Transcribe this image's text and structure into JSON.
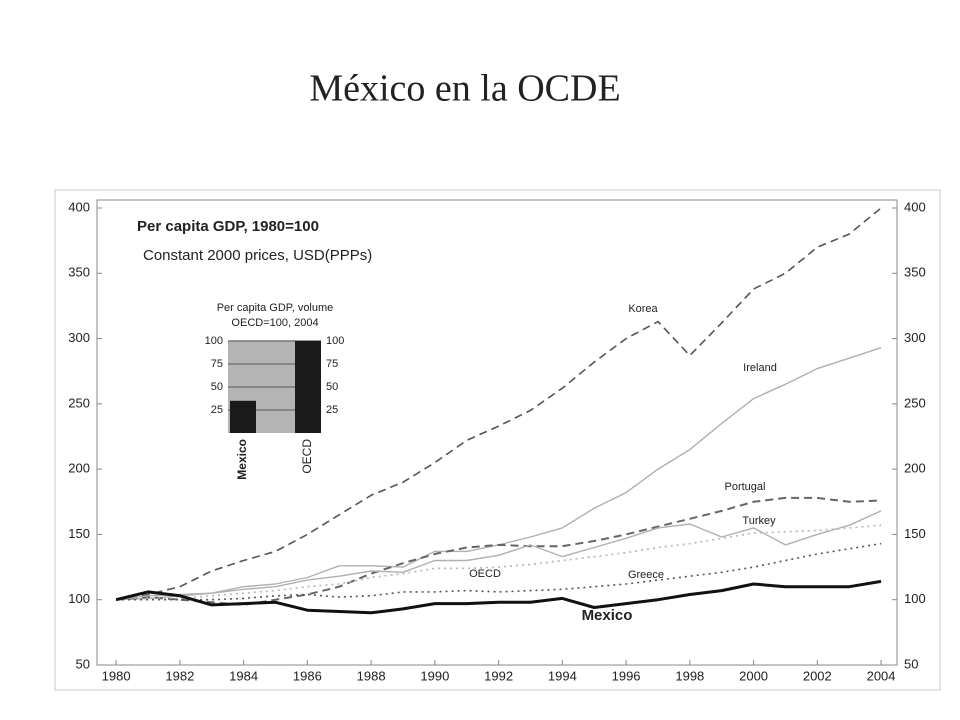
{
  "title": "México en la OCDE",
  "chart_data": [
    {
      "type": "line",
      "title": "Per capita GDP, 1980=100",
      "subtitle": "Constant 2000 prices, USD(PPPs)",
      "x": [
        1980,
        1981,
        1982,
        1983,
        1984,
        1985,
        1986,
        1987,
        1988,
        1989,
        1990,
        1991,
        1992,
        1993,
        1994,
        1995,
        1996,
        1997,
        1998,
        1999,
        2000,
        2001,
        2002,
        2003,
        2004
      ],
      "xlim": [
        1979.4,
        2004.5
      ],
      "xticks": [
        1980,
        1982,
        1984,
        1986,
        1988,
        1990,
        1992,
        1994,
        1996,
        1998,
        2000,
        2002,
        2004
      ],
      "ylim": [
        50,
        400
      ],
      "yticks": [
        50,
        100,
        150,
        200,
        250,
        300,
        350,
        400
      ],
      "y2lim": [
        50,
        400
      ],
      "y2ticks": [
        50,
        100,
        150,
        200,
        250,
        300,
        350,
        400
      ],
      "series": [
        {
          "name": "Korea",
          "color": "#555555",
          "style": "dashed",
          "width": 1.6,
          "values": [
            100,
            104,
            110,
            122,
            130,
            137,
            150,
            165,
            180,
            190,
            205,
            222,
            233,
            245,
            262,
            282,
            300,
            313,
            287,
            312,
            338,
            350,
            370,
            380,
            400
          ]
        },
        {
          "name": "Ireland",
          "color": "#b0b0b0",
          "style": "solid",
          "width": 1.4,
          "values": [
            100,
            101,
            103,
            105,
            110,
            112,
            117,
            126,
            126,
            125,
            137,
            137,
            142,
            148,
            155,
            170,
            182,
            200,
            215,
            235,
            254,
            265,
            277,
            285,
            293
          ]
        },
        {
          "name": "Portugal",
          "color": "#666666",
          "style": "dashed",
          "width": 2,
          "values": [
            100,
            102,
            100,
            98,
            96,
            100,
            104,
            110,
            120,
            128,
            135,
            140,
            142,
            141,
            141,
            145,
            150,
            156,
            162,
            168,
            175,
            178,
            178,
            175,
            176
          ]
        },
        {
          "name": "Turkey",
          "color": "#b0b0b0",
          "style": "solid",
          "width": 1.4,
          "values": [
            100,
            103,
            104,
            105,
            108,
            110,
            115,
            118,
            122,
            121,
            130,
            130,
            134,
            142,
            133,
            140,
            147,
            155,
            158,
            148,
            155,
            142,
            150,
            157,
            168
          ]
        },
        {
          "name": "OECD",
          "color": "#bbbbbb",
          "style": "dotted",
          "width": 1.8,
          "values": [
            100,
            101,
            101,
            103,
            105,
            107,
            110,
            112,
            117,
            120,
            124,
            124,
            125,
            127,
            130,
            133,
            136,
            140,
            143,
            147,
            151,
            152,
            153,
            155,
            157
          ]
        },
        {
          "name": "Greece",
          "color": "#555555",
          "style": "dotted",
          "width": 1.6,
          "values": [
            100,
            100,
            100,
            100,
            101,
            103,
            104,
            102,
            103,
            106,
            106,
            107,
            106,
            107,
            108,
            110,
            112,
            115,
            118,
            121,
            125,
            130,
            135,
            139,
            143
          ]
        },
        {
          "name": "Mexico",
          "color": "#111111",
          "style": "solid",
          "width": 3,
          "values": [
            100,
            106,
            103,
            96,
            97,
            98,
            92,
            91,
            90,
            93,
            97,
            97,
            98,
            98,
            101,
            94,
            97,
            100,
            104,
            107,
            112,
            110,
            110,
            110,
            114
          ]
        }
      ]
    },
    {
      "type": "bar",
      "title": "Per capita GDP, volume",
      "subtitle": "OECD=100, 2004",
      "categories": [
        "Mexico",
        "OECD"
      ],
      "values": [
        35,
        100
      ],
      "color": "#1a1a1a",
      "ylim": [
        0,
        100
      ],
      "yticks": [
        25,
        50,
        75,
        100
      ],
      "grid": true
    }
  ]
}
